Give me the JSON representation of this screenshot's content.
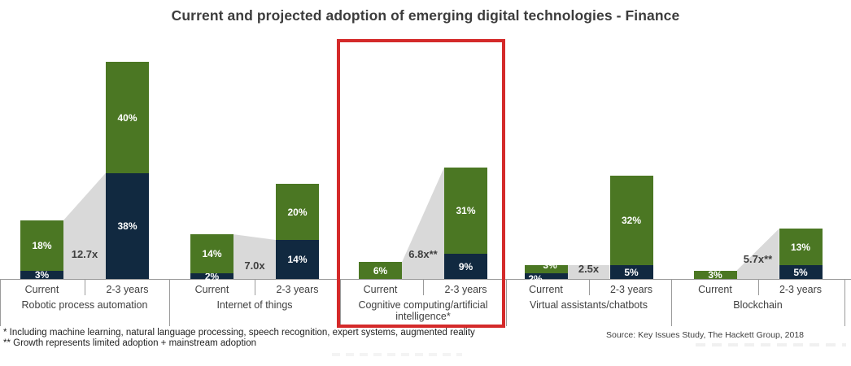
{
  "title": "Current and projected adoption of emerging digital technologies - Finance",
  "chart_data": {
    "type": "bar",
    "subtype": "grouped stacked bars with growth wedges",
    "unit": "%",
    "grid": false,
    "legend": "none",
    "categories_per_group": [
      "Current",
      "2-3 years"
    ],
    "colors": {
      "navy": "#112940",
      "green": "#4b7723",
      "wedge_gray": "#d9d9d9",
      "highlight_red": "#d42a2a",
      "text_gray": "#3f3f3f"
    },
    "groups": [
      {
        "name": "Robotic process automation",
        "highlighted": false,
        "multiplier": "12.7x",
        "wedge_to": "navy",
        "current": {
          "segments": [
            {
              "series": "navy",
              "value": 3,
              "label": "3%"
            },
            {
              "series": "green",
              "value": 18,
              "label": "18%"
            }
          ]
        },
        "projected": {
          "segments": [
            {
              "series": "navy",
              "value": 38,
              "label": "38%"
            },
            {
              "series": "green",
              "value": 40,
              "label": "40%"
            }
          ]
        }
      },
      {
        "name": "Internet of things",
        "highlighted": false,
        "multiplier": "7.0x",
        "wedge_to": "navy",
        "current": {
          "segments": [
            {
              "series": "navy",
              "value": 2,
              "label": "2%"
            },
            {
              "series": "green",
              "value": 14,
              "label": "14%"
            }
          ]
        },
        "projected": {
          "segments": [
            {
              "series": "navy",
              "value": 14,
              "label": "14%"
            },
            {
              "series": "green",
              "value": 20,
              "label": "20%"
            }
          ]
        }
      },
      {
        "name": "Cognitive computing/artificial intelligence*",
        "highlighted": true,
        "multiplier": "6.8x**",
        "wedge_to": "total",
        "current": {
          "segments": [
            {
              "series": "green",
              "value": 6,
              "label": "6%"
            }
          ]
        },
        "projected": {
          "segments": [
            {
              "series": "navy",
              "value": 9,
              "label": "9%"
            },
            {
              "series": "green",
              "value": 31,
              "label": "31%"
            }
          ]
        }
      },
      {
        "name": "Virtual assistants/chatbots",
        "highlighted": false,
        "multiplier": "2.5x",
        "wedge_to": "navy",
        "current": {
          "segments": [
            {
              "series": "navy",
              "value": 2,
              "label": "2%"
            },
            {
              "series": "green",
              "value": 3,
              "label": "3%"
            }
          ]
        },
        "projected": {
          "segments": [
            {
              "series": "navy",
              "value": 5,
              "label": "5%"
            },
            {
              "series": "green",
              "value": 32,
              "label": "32%"
            }
          ]
        }
      },
      {
        "name": "Blockchain",
        "highlighted": false,
        "multiplier": "5.7x**",
        "wedge_to": "total",
        "current": {
          "segments": [
            {
              "series": "green",
              "value": 3,
              "label": "3%"
            }
          ]
        },
        "projected": {
          "segments": [
            {
              "series": "navy",
              "value": 5,
              "label": "5%"
            },
            {
              "series": "green",
              "value": 13,
              "label": "13%"
            }
          ]
        }
      }
    ]
  },
  "footnotes": [
    "* Including machine learning, natural language processing, speech recognition, expert systems, augmented reality",
    "** Growth represents limited adoption + mainstream adoption"
  ],
  "source": "Source: Key Issues Study, The Hackett Group, 2018"
}
